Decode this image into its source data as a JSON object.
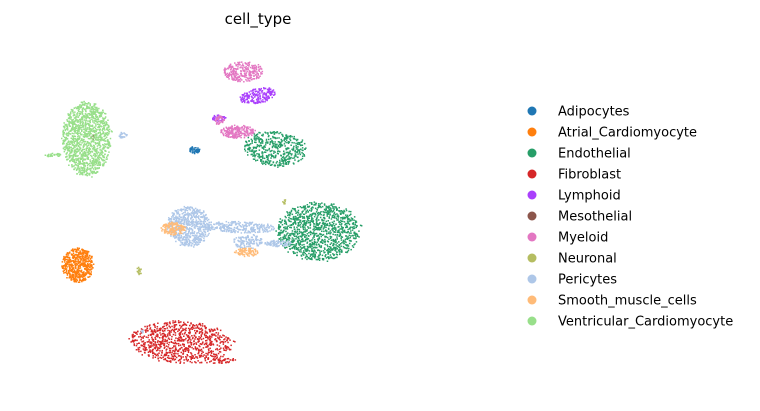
{
  "chart_data": {
    "type": "scatter",
    "title": "cell_type",
    "xlabel": "",
    "ylabel": "",
    "axes_visible": false,
    "grid": false,
    "legend_position": "right",
    "xlim": [
      0,
      100
    ],
    "ylim": [
      0,
      100
    ],
    "series": [
      {
        "name": "Adipocytes",
        "color": "#1f77b4",
        "clusters": [
          {
            "cx": 35.0,
            "cy": 69.5,
            "rx": 1.2,
            "ry": 1.0,
            "n": 45,
            "rot": -35
          }
        ]
      },
      {
        "name": "Atrial_Cardiomyocyte",
        "color": "#ff7f0e",
        "clusters": [
          {
            "cx": 10.9,
            "cy": 37.5,
            "rx": 3.3,
            "ry": 4.7,
            "n": 520,
            "rot": 0
          }
        ]
      },
      {
        "name": "Endothelial",
        "color": "#279e68",
        "clusters": [
          {
            "cx": 51.6,
            "cy": 69.8,
            "rx": 6.5,
            "ry": 4.8,
            "n": 480,
            "rot": -10
          },
          {
            "cx": 60.5,
            "cy": 46.8,
            "rx": 8.5,
            "ry": 8.0,
            "n": 1150,
            "rot": 0
          }
        ]
      },
      {
        "name": "Fibroblast",
        "color": "#d62728",
        "clusters": [
          {
            "cx": 32.2,
            "cy": 16.0,
            "rx": 10.5,
            "ry": 5.8,
            "n": 850,
            "rot": -5
          },
          {
            "cx": 40.5,
            "cy": 10.8,
            "rx": 3.5,
            "ry": 0.6,
            "n": 40,
            "rot": 8
          }
        ]
      },
      {
        "name": "Lymphoid",
        "color": "#aa40fc",
        "clusters": [
          {
            "cx": 48.0,
            "cy": 84.5,
            "rx": 3.8,
            "ry": 2.0,
            "n": 200,
            "rot": 20
          },
          {
            "cx": 40.0,
            "cy": 78.2,
            "rx": 1.5,
            "ry": 1.0,
            "n": 50,
            "rot": 0
          }
        ]
      },
      {
        "name": "Mesothelial",
        "color": "#8c564b",
        "clusters": [
          {
            "cx": 14.0,
            "cy": 73.0,
            "rx": 0.4,
            "ry": 0.6,
            "n": 8,
            "rot": 0
          }
        ]
      },
      {
        "name": "Myeloid",
        "color": "#e377c2",
        "clusters": [
          {
            "cx": 45.0,
            "cy": 91.2,
            "rx": 4.0,
            "ry": 2.8,
            "n": 260,
            "rot": 0
          },
          {
            "cx": 43.8,
            "cy": 74.5,
            "rx": 3.5,
            "ry": 1.8,
            "n": 220,
            "rot": 0
          },
          {
            "cx": 40.2,
            "cy": 77.5,
            "rx": 1.0,
            "ry": 1.4,
            "n": 40,
            "rot": 0
          }
        ]
      },
      {
        "name": "Neuronal",
        "color": "#b5bd61",
        "clusters": [
          {
            "cx": 23.5,
            "cy": 35.8,
            "rx": 0.6,
            "ry": 1.0,
            "n": 18,
            "rot": 0
          },
          {
            "cx": 53.5,
            "cy": 55.0,
            "rx": 0.6,
            "ry": 0.6,
            "n": 8,
            "rot": 0
          }
        ]
      },
      {
        "name": "Pericytes",
        "color": "#aec7e8",
        "clusters": [
          {
            "cx": 33.8,
            "cy": 48.2,
            "rx": 4.5,
            "ry": 5.5,
            "n": 650,
            "rot": 0
          },
          {
            "cx": 44.5,
            "cy": 48.0,
            "rx": 7.0,
            "ry": 1.6,
            "n": 260,
            "rot": -3
          },
          {
            "cx": 46.0,
            "cy": 44.0,
            "rx": 3.0,
            "ry": 2.0,
            "n": 130,
            "rot": 0
          },
          {
            "cx": 52.2,
            "cy": 43.5,
            "rx": 2.8,
            "ry": 0.9,
            "n": 80,
            "rot": 0
          },
          {
            "cx": 20.0,
            "cy": 73.5,
            "rx": 1.0,
            "ry": 0.8,
            "n": 25,
            "rot": 0
          },
          {
            "cx": 24.3,
            "cy": 19.0,
            "rx": 0.3,
            "ry": 0.5,
            "n": 6,
            "rot": 0
          }
        ]
      },
      {
        "name": "Smooth_muscle_cells",
        "color": "#ffbb78",
        "clusters": [
          {
            "cx": 30.5,
            "cy": 47.5,
            "rx": 2.5,
            "ry": 1.8,
            "n": 140,
            "rot": 0
          },
          {
            "cx": 45.8,
            "cy": 41.0,
            "rx": 2.5,
            "ry": 1.2,
            "n": 90,
            "rot": 0
          }
        ]
      },
      {
        "name": "Ventricular_Cardiomyocyte",
        "color": "#98df8a",
        "clusters": [
          {
            "cx": 12.7,
            "cy": 72.5,
            "rx": 5.0,
            "ry": 10.2,
            "n": 1400,
            "rot": 0
          },
          {
            "cx": 6.0,
            "cy": 68.0,
            "rx": 2.0,
            "ry": 0.5,
            "n": 30,
            "rot": 0
          }
        ]
      }
    ]
  }
}
